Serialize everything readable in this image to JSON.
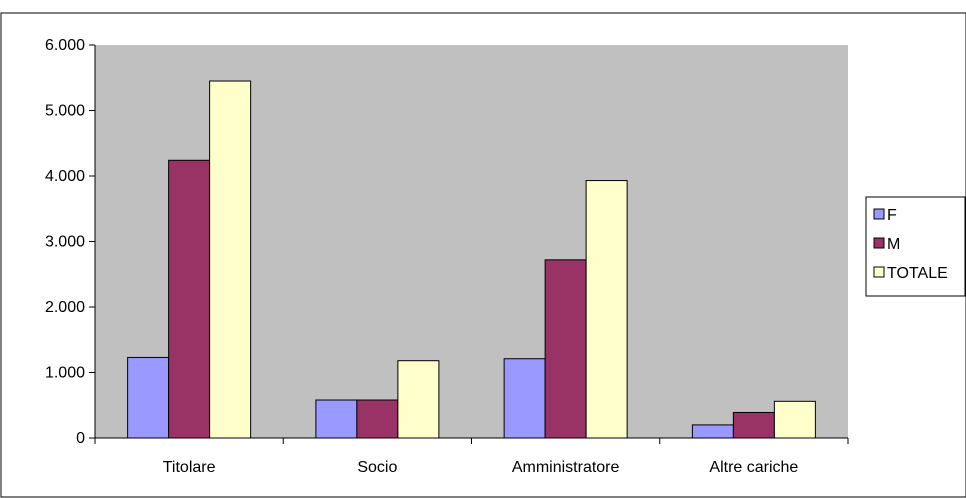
{
  "caption": "",
  "colors": {
    "plot_background": "#c0c0c0",
    "frame": "#000000",
    "F": "#9999ff",
    "M": "#993366",
    "TOTALE": "#ffffcc"
  },
  "chart_data": {
    "type": "bar",
    "title": "",
    "xlabel": "",
    "ylabel": "",
    "categories": [
      "Titolare",
      "Socio",
      "Amministratore",
      "Altre cariche"
    ],
    "series": [
      {
        "name": "F",
        "values": [
          1230,
          580,
          1210,
          200
        ]
      },
      {
        "name": "M",
        "values": [
          4240,
          580,
          2720,
          390
        ]
      },
      {
        "name": "TOTALE",
        "values": [
          5450,
          1180,
          3930,
          560
        ]
      }
    ],
    "ylim": [
      0,
      6000
    ],
    "yticks": [
      0,
      1000,
      2000,
      3000,
      4000,
      5000,
      6000
    ],
    "ytick_labels": [
      "0",
      "1.000",
      "2.000",
      "3.000",
      "4.000",
      "5.000",
      "6.000"
    ],
    "grid": false,
    "legend": {
      "position": "right",
      "entries": [
        "F",
        "M",
        "TOTALE"
      ]
    }
  }
}
